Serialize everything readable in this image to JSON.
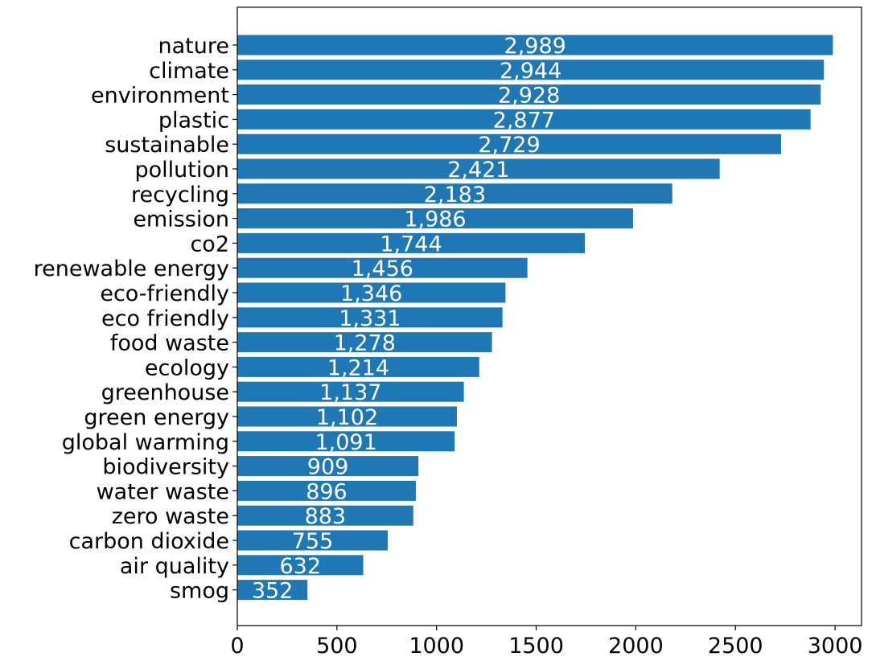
{
  "chart_data": {
    "type": "bar",
    "orientation": "horizontal",
    "categories": [
      "nature",
      "climate",
      "environment",
      "plastic",
      "sustainable",
      "pollution",
      "recycling",
      "emission",
      "co2",
      "renewable energy",
      "eco-friendly",
      "eco friendly",
      "food waste",
      "ecology",
      "greenhouse",
      "green energy",
      "global warming",
      "biodiversity",
      "water waste",
      "zero waste",
      "carbon dioxide",
      "air quality",
      "smog"
    ],
    "values": [
      2989,
      2944,
      2928,
      2877,
      2729,
      2421,
      2183,
      1986,
      1744,
      1456,
      1346,
      1331,
      1278,
      1214,
      1137,
      1102,
      1091,
      909,
      896,
      883,
      755,
      632,
      352
    ],
    "value_labels": [
      "2,989",
      "2,944",
      "2,928",
      "2,877",
      "2,729",
      "2,421",
      "2,183",
      "1,986",
      "1,744",
      "1,456",
      "1,346",
      "1,331",
      "1,278",
      "1,214",
      "1,137",
      "1,102",
      "1,091",
      "909",
      "896",
      "883",
      "755",
      "632",
      "352"
    ],
    "x_ticks": [
      0,
      500,
      1000,
      1500,
      2000,
      2500,
      3000
    ],
    "x_tick_labels": [
      "0",
      "500",
      "1000",
      "1500",
      "2000",
      "2500",
      "3000"
    ],
    "xlim": [
      0,
      3150
    ],
    "title": "",
    "xlabel": "",
    "ylabel": "",
    "grid": false,
    "bar_color": "#1f77b4",
    "label_color": "#ffffff"
  }
}
